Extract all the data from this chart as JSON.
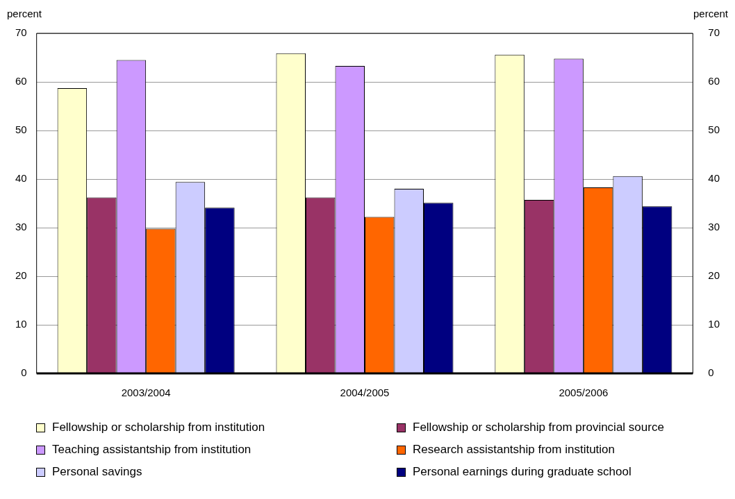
{
  "chart_data": {
    "type": "bar",
    "categories": [
      "2003/2004",
      "2004/2005",
      "2005/2006"
    ],
    "ylabel": "percent",
    "y2label": "percent",
    "series": [
      {
        "name": "Fellowship or scholarship from institution",
        "color": "#ffffcc",
        "values": [
          58.7,
          65.9,
          65.6
        ]
      },
      {
        "name": "Fellowship or scholarship from provincial source",
        "color": "#993366",
        "values": [
          36.2,
          36.2,
          35.7
        ]
      },
      {
        "name": "Teaching assistantship from institution",
        "color": "#cc99ff",
        "values": [
          64.5,
          63.3,
          64.8
        ]
      },
      {
        "name": "Research assistantship from institution",
        "color": "#ff6600",
        "values": [
          29.8,
          32.2,
          38.3
        ]
      },
      {
        "name": "Personal savings",
        "color": "#ccccff",
        "values": [
          39.4,
          38.0,
          40.6
        ]
      },
      {
        "name": "Personal earnings during graduate school",
        "color": "#000080",
        "values": [
          34.1,
          35.1,
          34.4
        ]
      }
    ],
    "ylim": [
      0,
      70
    ],
    "yticks": [
      0,
      10,
      20,
      30,
      40,
      50,
      60,
      70
    ],
    "y2lim": [
      0,
      70
    ],
    "y2ticks": [
      0,
      10,
      20,
      30,
      40,
      50,
      60,
      70
    ],
    "grid": "y",
    "legend": "bottom"
  }
}
